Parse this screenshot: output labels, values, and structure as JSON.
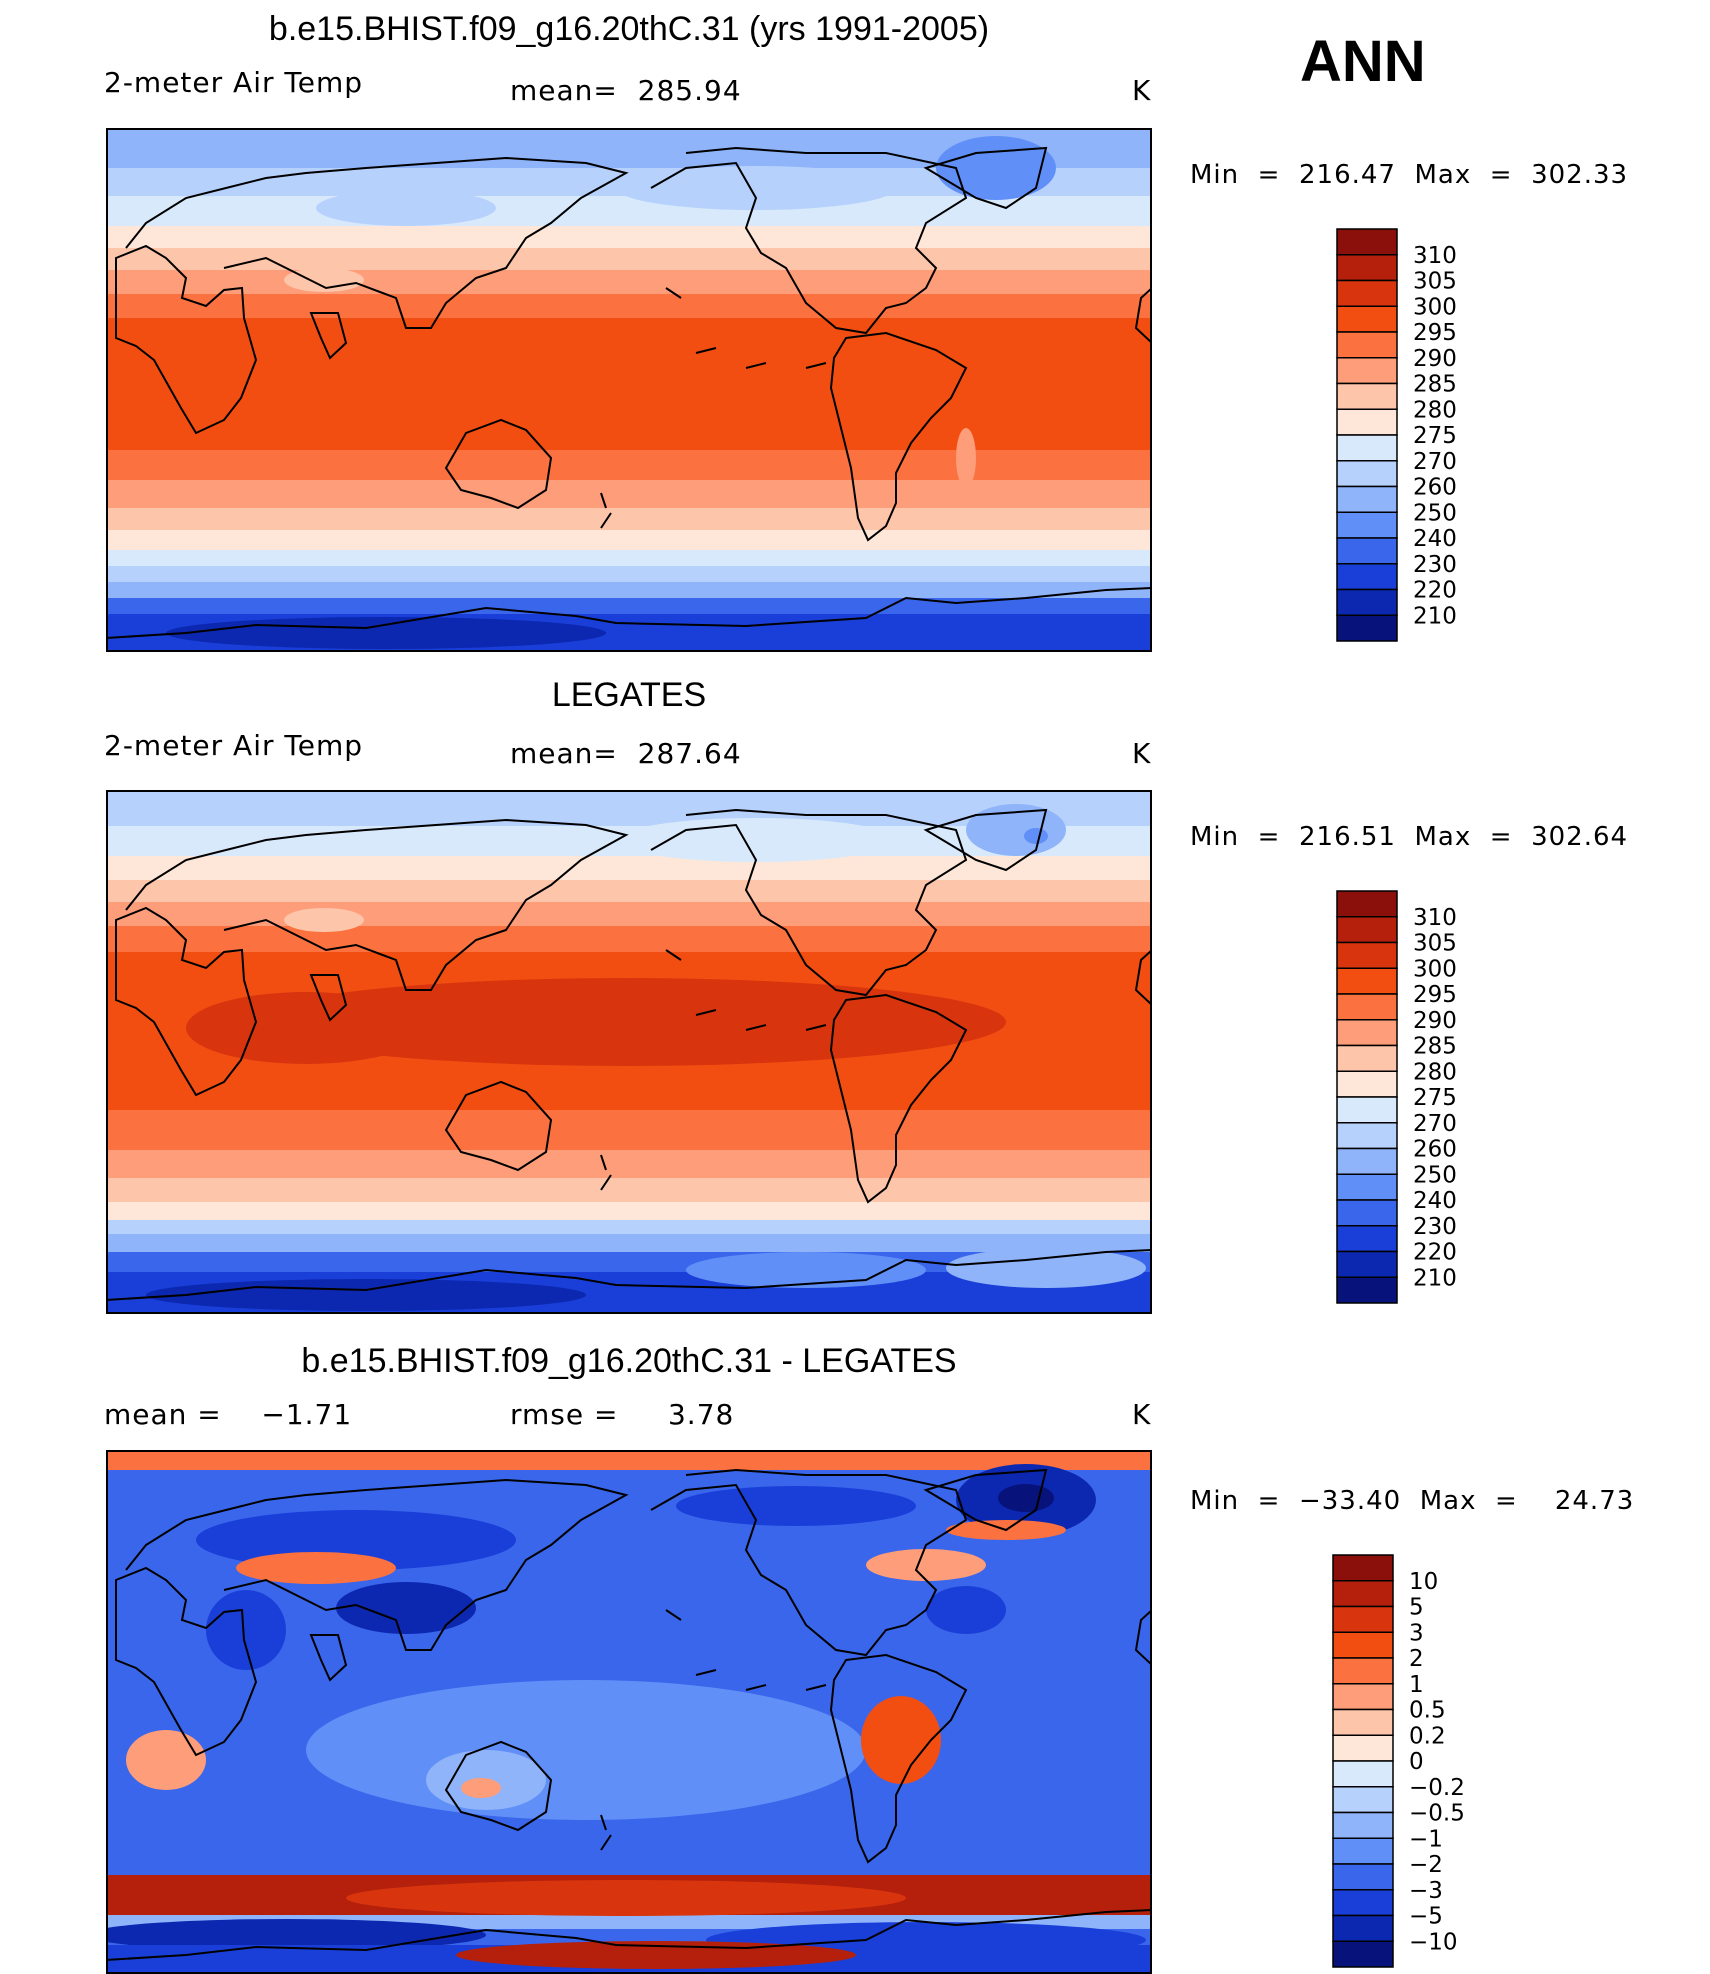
{
  "season": "ANN",
  "panels": [
    {
      "title": "b.e15.BHIST.f09_g16.20thC.31 (yrs 1991-2005)",
      "left": "2-meter Air Temp",
      "center": "mean=  285.94",
      "right": "K",
      "minmax": "Min  =  216.47  Max  =  302.33",
      "field_min": 216.47,
      "field_max": 302.33,
      "field_mean": 285.94,
      "units": "K",
      "colorbar": {
        "labels": [
          "310",
          "305",
          "300",
          "295",
          "290",
          "285",
          "280",
          "275",
          "270",
          "260",
          "250",
          "240",
          "230",
          "220",
          "210"
        ],
        "colors": [
          "#8b0f0a",
          "#b4200c",
          "#d8350e",
          "#f24e12",
          "#fb7140",
          "#fd9d79",
          "#fdc5aa",
          "#fee7d8",
          "#d8e9fc",
          "#b6d1fb",
          "#8fb4fa",
          "#6090f7",
          "#3a66ec",
          "#1a3fd9",
          "#0c28b0",
          "#07137a"
        ]
      }
    },
    {
      "title": "LEGATES",
      "left": "2-meter Air Temp",
      "center": "mean=  287.64",
      "right": "K",
      "minmax": "Min  =  216.51  Max  =  302.64",
      "field_min": 216.51,
      "field_max": 302.64,
      "field_mean": 287.64,
      "units": "K",
      "colorbar": {
        "labels": [
          "310",
          "305",
          "300",
          "295",
          "290",
          "285",
          "280",
          "275",
          "270",
          "260",
          "250",
          "240",
          "230",
          "220",
          "210"
        ],
        "colors": [
          "#8b0f0a",
          "#b4200c",
          "#d8350e",
          "#f24e12",
          "#fb7140",
          "#fd9d79",
          "#fdc5aa",
          "#fee7d8",
          "#d8e9fc",
          "#b6d1fb",
          "#8fb4fa",
          "#6090f7",
          "#3a66ec",
          "#1a3fd9",
          "#0c28b0",
          "#07137a"
        ]
      }
    },
    {
      "title": "b.e15.BHIST.f09_g16.20thC.31 - LEGATES",
      "left": "mean =    −1.71",
      "center": "rmse =     3.78",
      "right": "K",
      "minmax": "Min  =  −33.40  Max  =    24.73",
      "field_min": -33.4,
      "field_max": 24.73,
      "field_mean": -1.71,
      "rmse": 3.78,
      "units": "K",
      "colorbar": {
        "labels": [
          "10",
          "5",
          "3",
          "2",
          "1",
          "0.5",
          "0.2",
          "0",
          "−0.2",
          "−0.5",
          "−1",
          "−2",
          "−3",
          "−5",
          "−10"
        ],
        "colors": [
          "#8b0f0a",
          "#b4200c",
          "#d8350e",
          "#f24e12",
          "#fb7140",
          "#fd9d79",
          "#fdc5aa",
          "#fee7d8",
          "#d8e9fc",
          "#b6d1fb",
          "#8fb4fa",
          "#6090f7",
          "#3a66ec",
          "#1a3fd9",
          "#0c28b0",
          "#07137a"
        ]
      }
    }
  ]
}
